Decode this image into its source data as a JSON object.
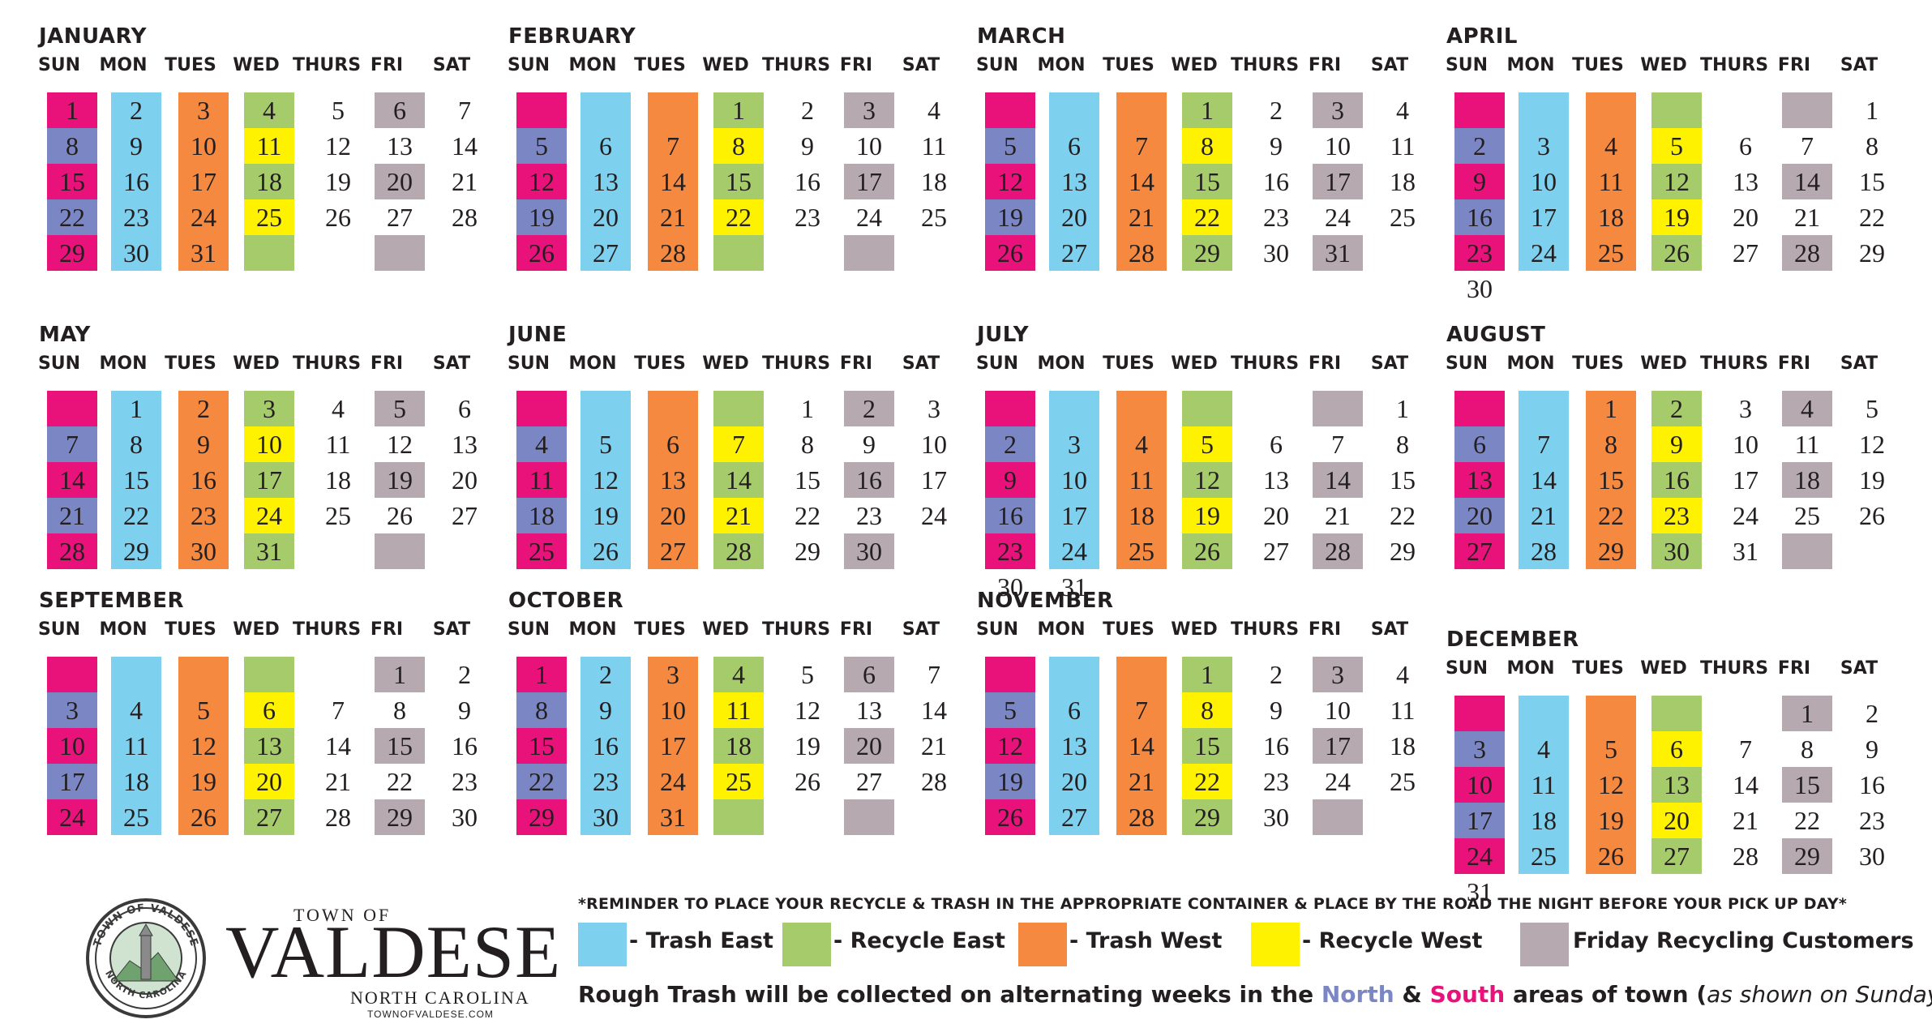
{
  "day_names": [
    "SUN",
    "MON",
    "TUES",
    "WED",
    "THURS",
    "FRI",
    "SAT"
  ],
  "colors": {
    "trash_east": "#7ed0ef",
    "recycle_east": "#a6cb6b",
    "trash_west": "#f4893f",
    "recycle_west": "#fef200",
    "friday": "#b6aab0",
    "north": "#7b87c4",
    "south": "#e8127a"
  },
  "months": [
    {
      "name": "JANUARY",
      "start": 0,
      "days": 31
    },
    {
      "name": "FEBRUARY",
      "start": 3,
      "days": 28
    },
    {
      "name": "MARCH",
      "start": 3,
      "days": 31
    },
    {
      "name": "APRIL",
      "start": 6,
      "days": 30
    },
    {
      "name": "MAY",
      "start": 1,
      "days": 31
    },
    {
      "name": "JUNE",
      "start": 4,
      "days": 30
    },
    {
      "name": "JULY",
      "start": 6,
      "days": 31
    },
    {
      "name": "AUGUST",
      "start": 2,
      "days": 31
    },
    {
      "name": "SEPTEMBER",
      "start": 5,
      "days": 30
    },
    {
      "name": "OCTOBER",
      "start": 0,
      "days": 31
    },
    {
      "name": "NOVEMBER",
      "start": 3,
      "days": 30
    },
    {
      "name": "DECEMBER",
      "start": 5,
      "days": 31
    }
  ],
  "legend": {
    "reminder": "*REMINDER TO PLACE YOUR RECYCLE & TRASH IN THE APPROPRIATE CONTAINER & PLACE BY THE ROAD THE NIGHT BEFORE YOUR PICK UP DAY*",
    "items": [
      {
        "label": "- Trash East",
        "color": "#7ed0ef"
      },
      {
        "label": "- Recycle East",
        "color": "#a6cb6b"
      },
      {
        "label": "- Trash West",
        "color": "#f4893f"
      },
      {
        "label": "- Recycle West",
        "color": "#fef200"
      },
      {
        "label": "Friday Recycling Customers",
        "color": "#b6aab0"
      }
    ],
    "rough_prefix": "Rough Trash will be collected on alternating weeks in the ",
    "north": "North",
    "amp": " & ",
    "south": "South",
    "rough_mid": " areas of town (",
    "rough_ital": "as shown on Sundays",
    "rough_end": ")."
  },
  "logo": {
    "seal_top": "TOWN OF VALDESE",
    "seal_bottom": "NORTH CAROLINA",
    "town_of": "TOWN OF",
    "name": "VALDESE",
    "state": "NORTH CAROLINA",
    "website": "TOWNOFVALDESE.COM"
  }
}
